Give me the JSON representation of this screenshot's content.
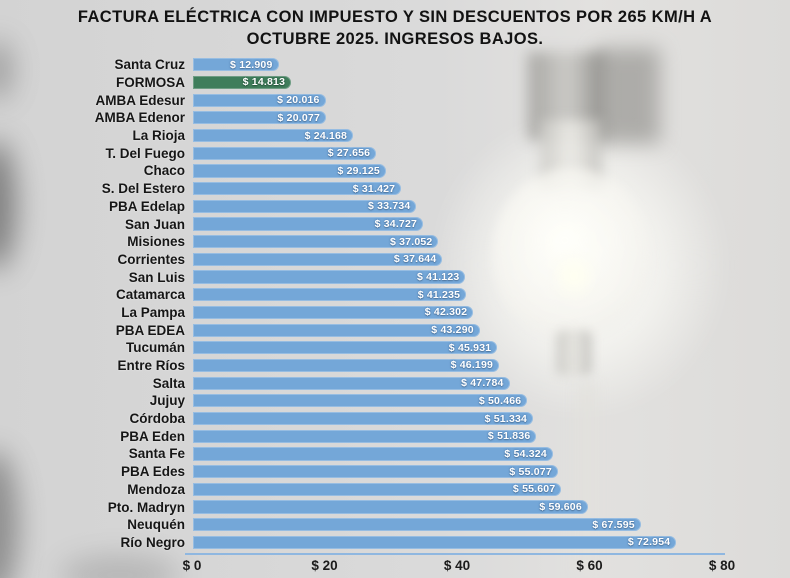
{
  "title": "FACTURA ELÉCTRICA CON IMPUESTO Y SIN DESCUENTOS POR 265 KM/H A OCTUBRE 2025. INGRESOS BAJOS.",
  "colors": {
    "bar": "#74a7d8",
    "highlight_bar": "#3f7d5b",
    "value_text": "#ffffff",
    "category_text": "#161616",
    "axis_line": "#8fb7e0",
    "background": "#d9d9d9"
  },
  "chart_data": {
    "type": "bar",
    "orientation": "horizontal",
    "title": "FACTURA ELÉCTRICA CON IMPUESTO Y SIN DESCUENTOS POR 265 KM/H A OCTUBRE 2025. INGRESOS BAJOS.",
    "categories": [
      "Santa Cruz",
      "FORMOSA",
      "AMBA Edesur",
      "AMBA Edenor",
      "La Rioja",
      "T. Del Fuego",
      "Chaco",
      "S. Del Estero",
      "PBA Edelap",
      "San Juan",
      "Misiones",
      "Corrientes",
      "San Luis",
      "Catamarca",
      "La Pampa",
      "PBA EDEA",
      "Tucumán",
      "Entre Ríos",
      "Salta",
      "Jujuy",
      "Córdoba",
      "PBA Eden",
      "Santa Fe",
      "PBA Edes",
      "Mendoza",
      "Pto. Madryn",
      "Neuquén",
      "Río Negro"
    ],
    "values": [
      12909,
      14813,
      20016,
      20077,
      24168,
      27656,
      29125,
      31427,
      33734,
      34727,
      37052,
      37644,
      41123,
      41235,
      42302,
      43290,
      45931,
      46199,
      47784,
      50466,
      51334,
      51836,
      54324,
      55077,
      55607,
      59606,
      67595,
      72954
    ],
    "value_labels": [
      "$ 12.909",
      "$ 14.813",
      "$ 20.016",
      "$ 20.077",
      "$ 24.168",
      "$ 27.656",
      "$ 29.125",
      "$ 31.427",
      "$ 33.734",
      "$ 34.727",
      "$ 37.052",
      "$ 37.644",
      "$ 41.123",
      "$ 41.235",
      "$ 42.302",
      "$ 43.290",
      "$ 45.931",
      "$ 46.199",
      "$ 47.784",
      "$ 50.466",
      "$ 51.334",
      "$ 51.836",
      "$ 54.324",
      "$ 55.077",
      "$ 55.607",
      "$ 59.606",
      "$ 67.595",
      "$ 72.954"
    ],
    "highlight_category": "FORMOSA",
    "x_ticks": [
      "$ 0",
      "$ 20",
      "$ 40",
      "$ 60",
      "$ 80"
    ],
    "x_tick_values": [
      0,
      20000,
      40000,
      60000,
      80000
    ],
    "xlim": [
      0,
      80000
    ],
    "grid": false,
    "legend": "none"
  }
}
